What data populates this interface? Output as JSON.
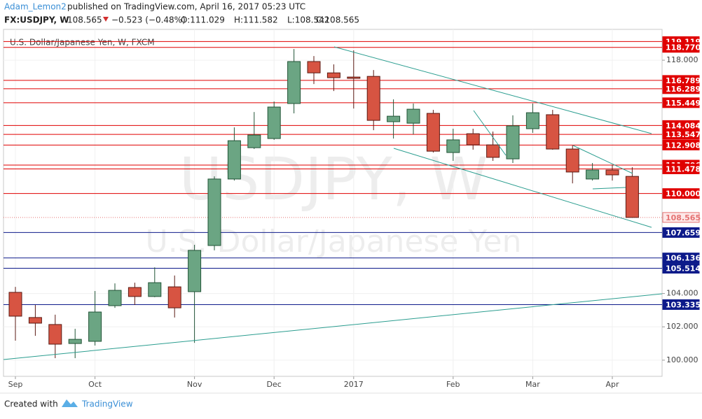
{
  "header": {
    "author": "Adam_Lemon2",
    "published": "published on TradingView.com, April 16, 2017 05:23 UTC",
    "symbol": "FX:USDJPY, W",
    "last": "108.565",
    "change": "−0.523 (−0.48%)",
    "open": "O:111.029",
    "high": "H:111.582",
    "low": "L:108.542",
    "close": "C:108.565"
  },
  "chart_data": {
    "type": "candlestick",
    "title": "U.S. Dollar/Japanese Yen, W, FXCM",
    "watermark": "USDJPY, W",
    "watermark_subtitle": "U.S. Dollar/Japanese Yen",
    "categories": [
      "Sep",
      null,
      null,
      null,
      "Oct",
      null,
      null,
      null,
      null,
      "Nov",
      null,
      null,
      null,
      "Dec",
      null,
      null,
      null,
      "2017",
      null,
      null,
      null,
      null,
      "Feb",
      null,
      null,
      null,
      "Mar",
      null,
      null,
      null,
      "Apr",
      null
    ],
    "open": [
      104.07,
      102.56,
      102.14,
      101.0,
      101.13,
      103.27,
      104.36,
      103.82,
      104.4,
      104.11,
      106.88,
      110.87,
      112.75,
      113.3,
      115.4,
      117.92,
      117.24,
      116.99,
      117.03,
      114.31,
      114.22,
      114.81,
      112.46,
      113.59,
      112.92,
      112.08,
      113.89,
      114.73,
      112.67,
      110.87,
      111.41,
      111.029
    ],
    "high": [
      104.4,
      103.31,
      102.73,
      101.88,
      104.15,
      104.61,
      104.65,
      105.57,
      105.08,
      106.92,
      111.03,
      113.97,
      114.89,
      115.52,
      118.67,
      118.25,
      117.75,
      118.59,
      117.41,
      115.65,
      115.4,
      115.02,
      113.89,
      113.89,
      113.72,
      114.69,
      115.4,
      115.02,
      112.88,
      111.83,
      111.71,
      111.582
    ],
    "low": [
      101.17,
      101.46,
      100.12,
      100.12,
      100.88,
      103.14,
      103.31,
      103.78,
      102.56,
      101.04,
      106.59,
      110.78,
      112.67,
      113.22,
      114.81,
      116.57,
      116.15,
      115.1,
      113.8,
      113.3,
      113.55,
      112.46,
      111.96,
      112.63,
      111.96,
      111.83,
      113.64,
      112.63,
      110.61,
      110.78,
      110.78,
      108.542
    ],
    "close": [
      102.64,
      102.22,
      100.96,
      101.25,
      102.89,
      104.19,
      103.82,
      104.65,
      103.14,
      106.59,
      110.87,
      113.17,
      113.51,
      115.19,
      117.92,
      117.24,
      116.95,
      116.91,
      114.39,
      114.64,
      115.06,
      112.54,
      113.22,
      112.92,
      112.17,
      114.06,
      114.85,
      112.67,
      111.29,
      111.41,
      111.12,
      108.565
    ],
    "up_color": "#6ba583",
    "down_color": "#d75442",
    "ylim": [
      99.03,
      119.85
    ],
    "yticks": [
      {
        "value": 100,
        "label": "100.000"
      },
      {
        "value": 102,
        "label": "102.000"
      },
      {
        "value": 104,
        "label": "104.000"
      },
      {
        "value": 118,
        "label": "118.000"
      }
    ],
    "levels": [
      {
        "value": 119.119,
        "label": "119.119",
        "color": "#e00000"
      },
      {
        "value": 118.77,
        "label": "118.770",
        "color": "#e00000"
      },
      {
        "value": 116.789,
        "label": "116.789",
        "color": "#e00000"
      },
      {
        "value": 116.289,
        "label": "116.289",
        "color": "#e00000"
      },
      {
        "value": 115.449,
        "label": "115.449",
        "color": "#e00000"
      },
      {
        "value": 114.084,
        "label": "114.084",
        "color": "#e00000"
      },
      {
        "value": 113.547,
        "label": "113.547",
        "color": "#e00000"
      },
      {
        "value": 112.908,
        "label": "112.908",
        "color": "#e00000"
      },
      {
        "value": 111.706,
        "label": "111.706",
        "color": "#e00000"
      },
      {
        "value": 111.478,
        "label": "111.478",
        "color": "#e00000"
      },
      {
        "value": 110,
        "label": "110.000",
        "color": "#e00000"
      },
      {
        "value": 108.565,
        "label": "108.565",
        "color": "#e57373",
        "last": true
      },
      {
        "value": 107.659,
        "label": "107.659",
        "color": "#0d1a8a"
      },
      {
        "value": 106.136,
        "label": "106.136",
        "color": "#0d1a8a"
      },
      {
        "value": 105.514,
        "label": "105.514",
        "color": "#0d1a8a"
      },
      {
        "value": 103.335,
        "label": "103.335",
        "color": "#0d1a8a"
      }
    ],
    "grid": true
  },
  "footer": {
    "created": "Created with",
    "brand": "TradingView"
  }
}
